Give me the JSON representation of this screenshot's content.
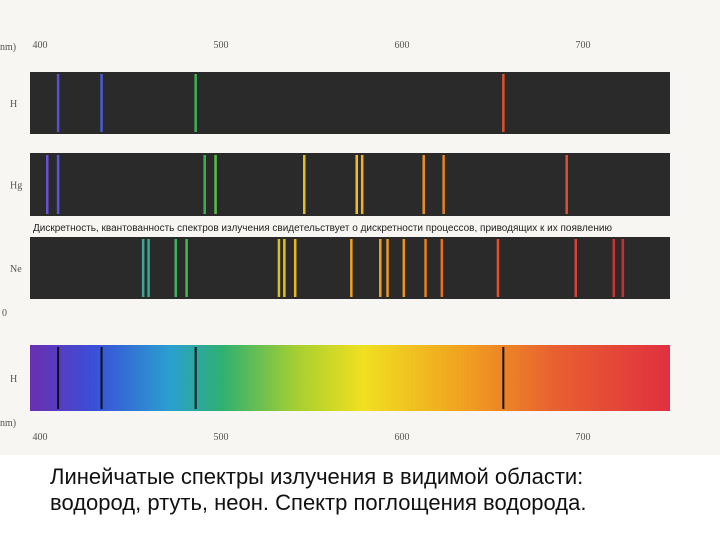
{
  "axis_top": {
    "unit": "nm)",
    "ticks": [
      400,
      500,
      600,
      700
    ]
  },
  "axis_bottom": {
    "unit": "nm)",
    "ticks": [
      400,
      500,
      600,
      700
    ]
  },
  "stray_mark": "0",
  "overlay_text": "Дискретность, квантованность спектров излучения свидетельствует о дискретности процессов, приводящих к их появлению",
  "spectra": [
    {
      "label": "H",
      "kind": "emission",
      "lines": [
        {
          "wavelength": 410,
          "color": "#5a4fd0"
        },
        {
          "wavelength": 434,
          "color": "#4a5ad8"
        },
        {
          "wavelength": 486,
          "color": "#3fae55"
        },
        {
          "wavelength": 656,
          "color": "#e0502a"
        }
      ]
    },
    {
      "label": "Hg",
      "kind": "emission",
      "lines": [
        {
          "wavelength": 404,
          "color": "#6a4fd8"
        },
        {
          "wavelength": 410,
          "color": "#5a55d8"
        },
        {
          "wavelength": 491,
          "color": "#3fb050"
        },
        {
          "wavelength": 497,
          "color": "#55c040"
        },
        {
          "wavelength": 546,
          "color": "#e0c020"
        },
        {
          "wavelength": 575,
          "color": "#f0c020"
        },
        {
          "wavelength": 578,
          "color": "#f0b020"
        },
        {
          "wavelength": 612,
          "color": "#e89020"
        },
        {
          "wavelength": 623,
          "color": "#e88020"
        },
        {
          "wavelength": 691,
          "color": "#e05030"
        }
      ]
    },
    {
      "label": "Ne",
      "kind": "emission",
      "lines": [
        {
          "wavelength": 457,
          "color": "#3aa898"
        },
        {
          "wavelength": 460,
          "color": "#3aa890"
        },
        {
          "wavelength": 475,
          "color": "#40b060"
        },
        {
          "wavelength": 481,
          "color": "#48b855"
        },
        {
          "wavelength": 532,
          "color": "#d8c020"
        },
        {
          "wavelength": 535,
          "color": "#e0c020"
        },
        {
          "wavelength": 541,
          "color": "#e8b820"
        },
        {
          "wavelength": 572,
          "color": "#f0a020"
        },
        {
          "wavelength": 588,
          "color": "#f0a020"
        },
        {
          "wavelength": 592,
          "color": "#f09820"
        },
        {
          "wavelength": 601,
          "color": "#f09020"
        },
        {
          "wavelength": 613,
          "color": "#e88020"
        },
        {
          "wavelength": 622,
          "color": "#e87020"
        },
        {
          "wavelength": 653,
          "color": "#e05030"
        },
        {
          "wavelength": 696,
          "color": "#d84030"
        },
        {
          "wavelength": 717,
          "color": "#d03030"
        },
        {
          "wavelength": 722,
          "color": "#c83030"
        }
      ]
    },
    {
      "label": "H",
      "kind": "absorption",
      "lines": [
        {
          "wavelength": 410,
          "color": "#111111"
        },
        {
          "wavelength": 434,
          "color": "#111111"
        },
        {
          "wavelength": 486,
          "color": "#111111"
        },
        {
          "wavelength": 656,
          "color": "#111111"
        }
      ]
    }
  ],
  "caption": [
    "Линейчатые спектры излучения в видимой области:",
    "водород, ртуть, неон. Спектр поглощения водорода."
  ]
}
